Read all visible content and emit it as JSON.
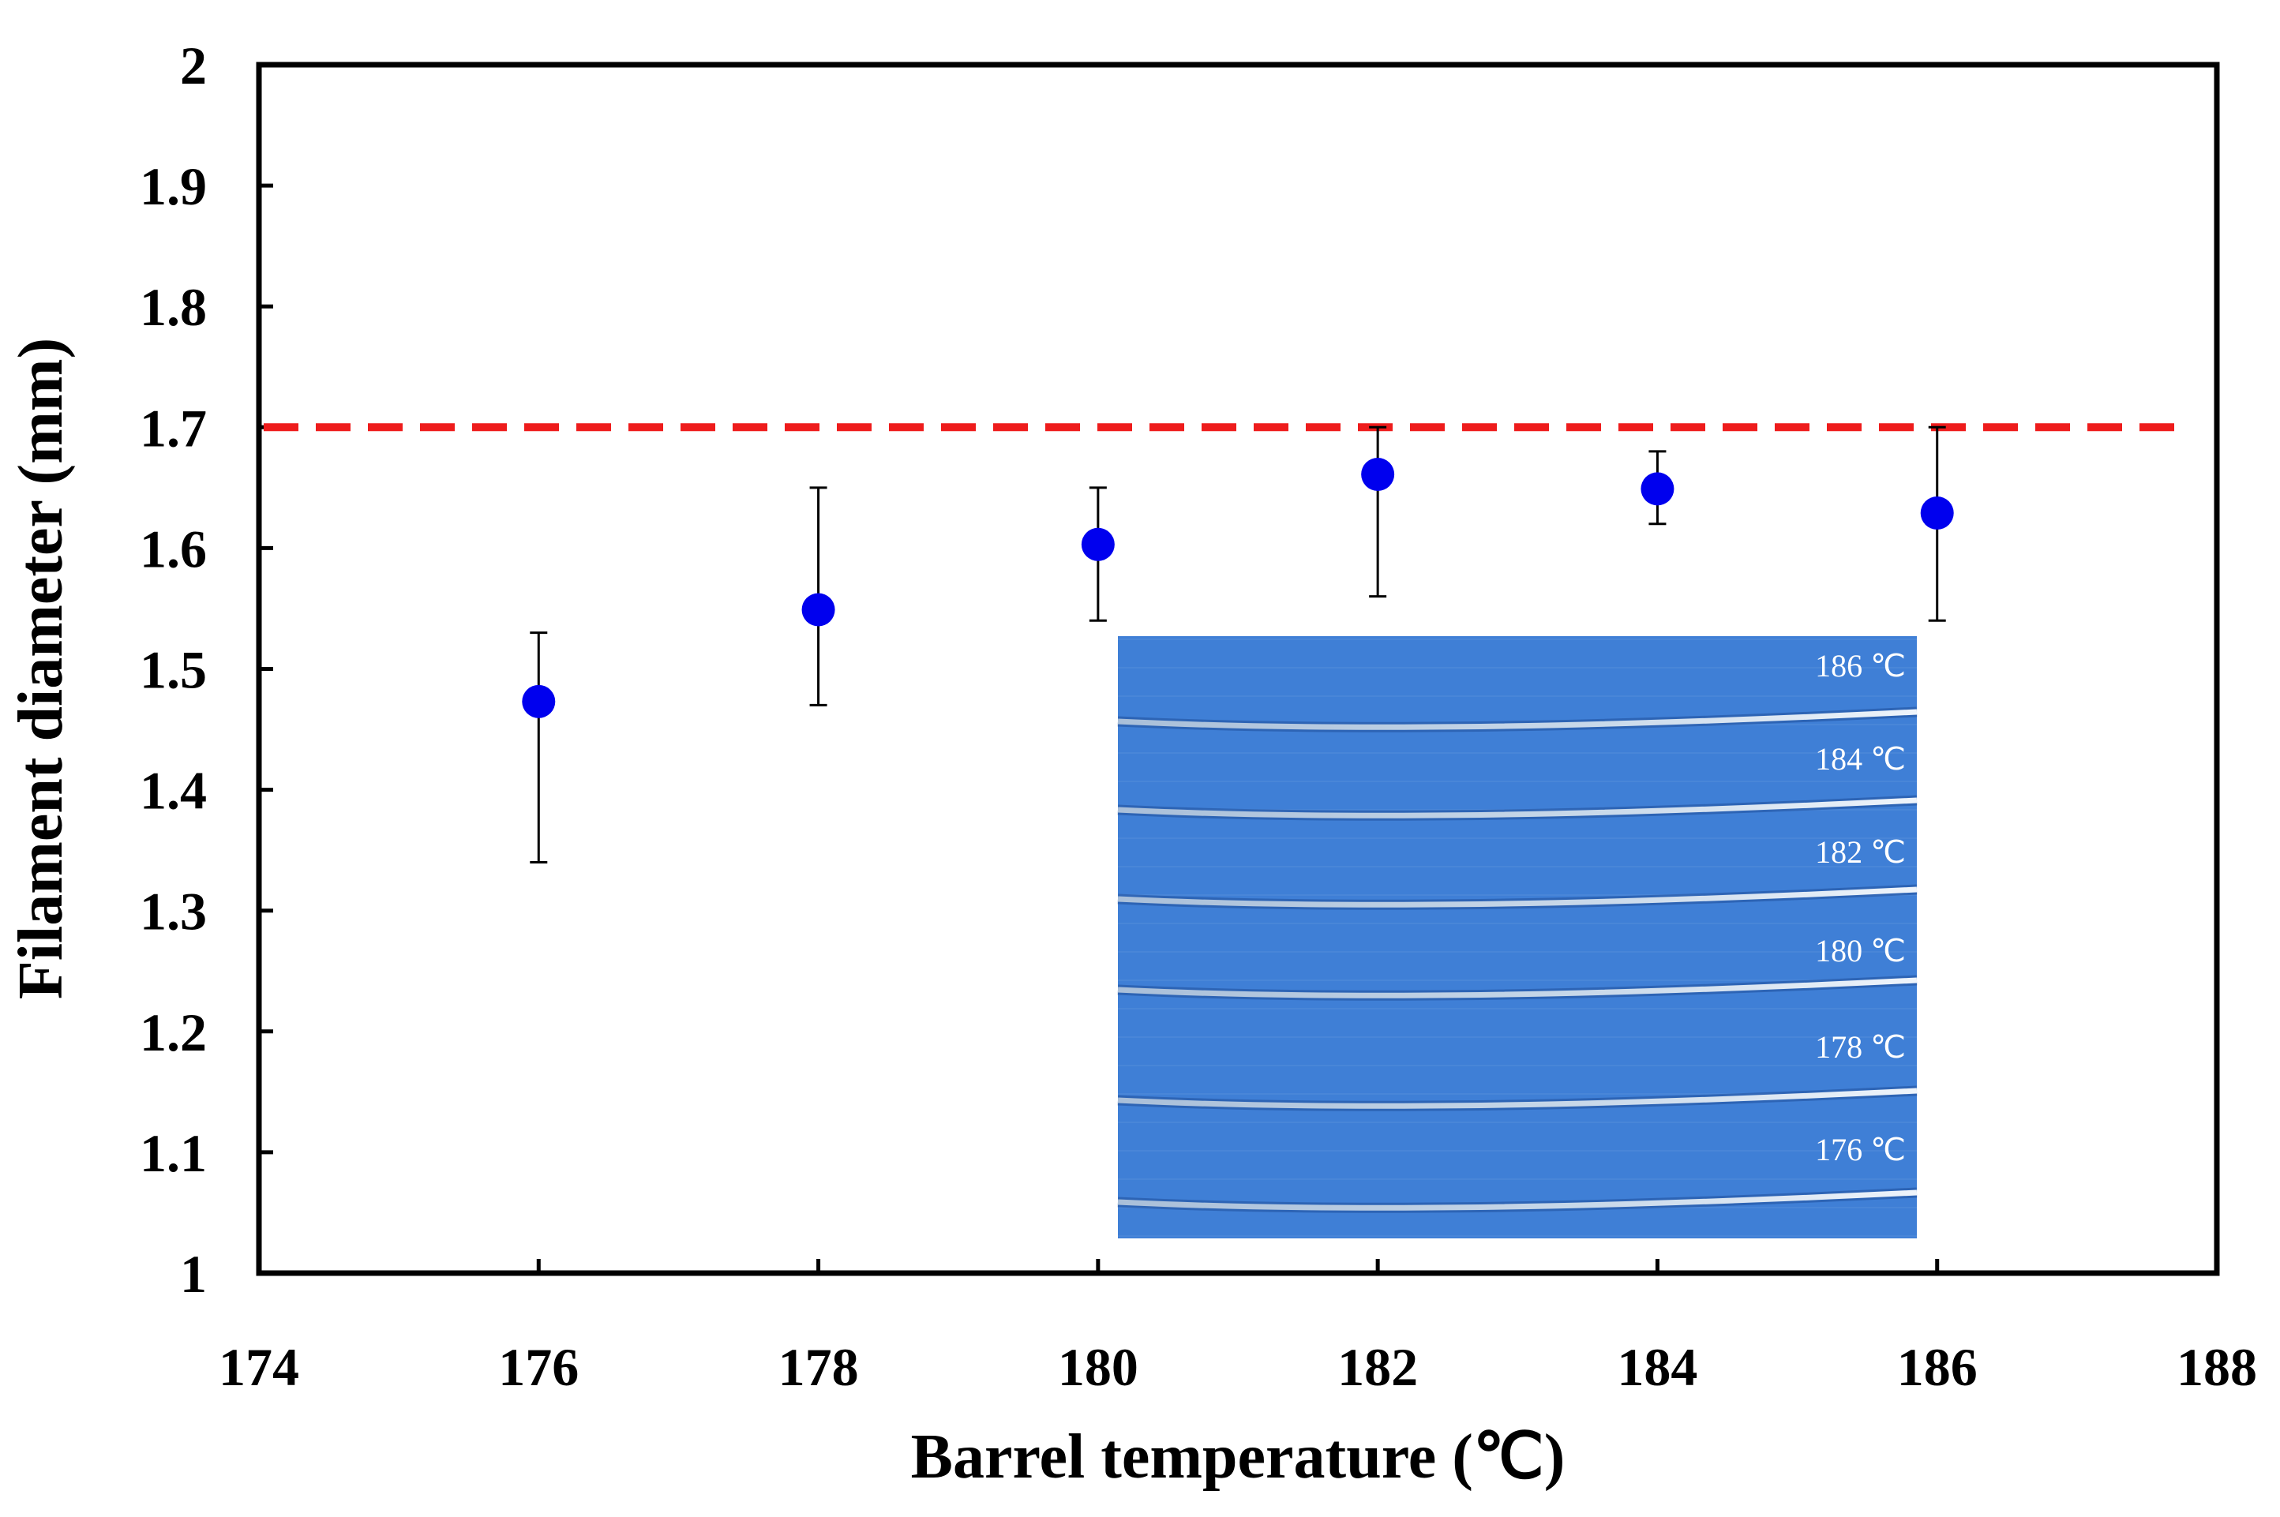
{
  "chart_data": {
    "type": "scatter",
    "title": "",
    "xlabel": "Barrel temperature (℃)",
    "ylabel": "Filament diameter (mm)",
    "xlim": [
      174,
      188
    ],
    "ylim": [
      1,
      2
    ],
    "xticks": [
      174,
      176,
      178,
      180,
      182,
      184,
      186,
      188
    ],
    "xtick_labels": [
      "174",
      "176",
      "178",
      "180",
      "182",
      "184",
      "186",
      "188"
    ],
    "yticks": [
      1,
      1.1,
      1.2,
      1.3,
      1.4,
      1.5,
      1.6,
      1.7,
      1.8,
      1.9,
      2
    ],
    "ytick_labels": [
      "1",
      "1.1",
      "1.2",
      "1.3",
      "1.4",
      "1.5",
      "1.6",
      "1.7",
      "1.8",
      "1.9",
      "2"
    ],
    "grid": false,
    "legend": "none",
    "series": [
      {
        "x": [
          176,
          178,
          180,
          182,
          184,
          186
        ],
        "y": [
          1.473,
          1.549,
          1.603,
          1.661,
          1.649,
          1.629
        ],
        "err_low": [
          1.34,
          1.47,
          1.54,
          1.56,
          1.62,
          1.54
        ],
        "err_high": [
          1.53,
          1.65,
          1.65,
          1.7,
          1.68,
          1.7
        ],
        "color": "#0000ee"
      }
    ],
    "reference_line": {
      "y": 1.7,
      "x_end": 187.8,
      "color": "#ee1c1c",
      "style": "dashed"
    },
    "inset": {
      "type": "photo",
      "background": "#3f7fd6",
      "labels": [
        "186 ℃",
        "184 ℃",
        "182 ℃",
        "180 ℃",
        "178 ℃",
        "176 ℃"
      ]
    }
  }
}
